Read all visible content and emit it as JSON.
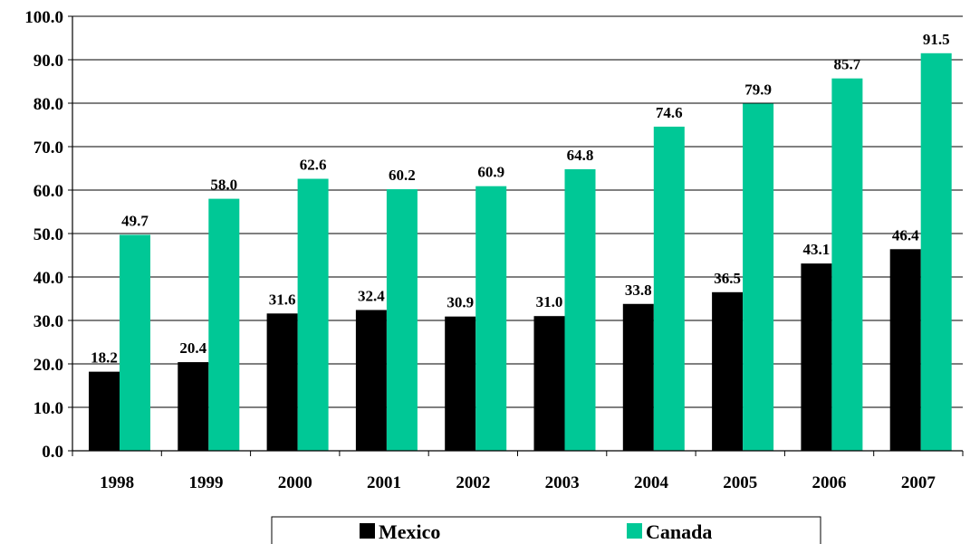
{
  "chart_data": {
    "type": "bar",
    "categories": [
      "1998",
      "1999",
      "2000",
      "2001",
      "2002",
      "2003",
      "2004",
      "2005",
      "2006",
      "2007"
    ],
    "series": [
      {
        "name": "Mexico",
        "color": "#000000",
        "values": [
          18.2,
          20.4,
          31.6,
          32.4,
          30.9,
          31.0,
          33.8,
          36.5,
          43.1,
          46.4
        ],
        "labels": [
          "18.2",
          "20.4",
          "31.6",
          "32.4",
          "30.9",
          "31.0",
          "33.8",
          "36.5",
          "43.1",
          "46.4"
        ]
      },
      {
        "name": "Canada",
        "color": "#00C896",
        "values": [
          49.7,
          58.0,
          62.6,
          60.2,
          60.9,
          64.8,
          74.6,
          79.9,
          85.7,
          91.5
        ],
        "labels": [
          "49.7",
          "58.0",
          "62.6",
          "60.2",
          "60.9",
          "64.8",
          "74.6",
          "79.9",
          "85.7",
          "91.5"
        ]
      }
    ],
    "ylim": [
      0,
      100
    ],
    "yticks": [
      "0.0",
      "10.0",
      "20.0",
      "30.0",
      "40.0",
      "50.0",
      "60.0",
      "70.0",
      "80.0",
      "90.0",
      "100.0"
    ],
    "grid": true,
    "legend_position": "bottom",
    "title": "",
    "xlabel": "",
    "ylabel": ""
  }
}
